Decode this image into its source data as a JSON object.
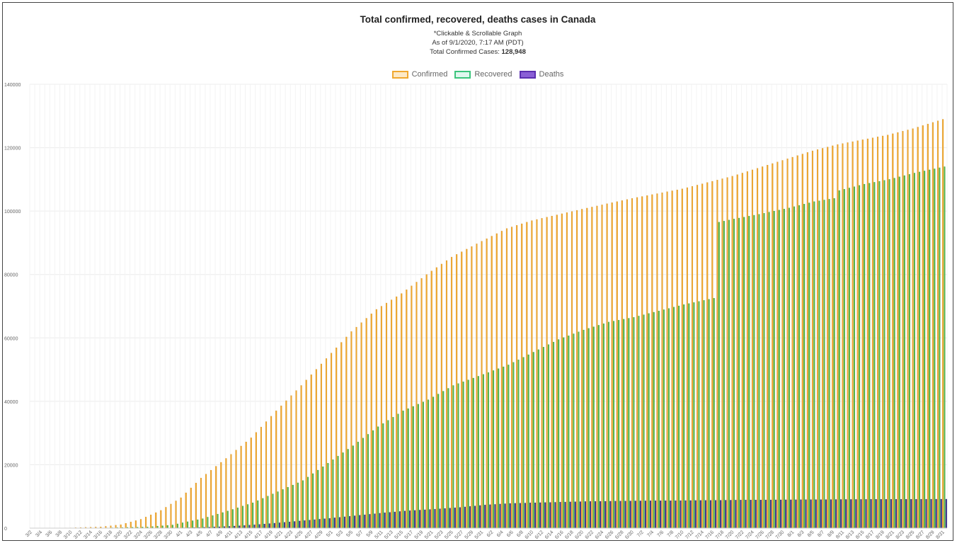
{
  "header": {
    "title": "Total confirmed, recovered, deaths cases in Canada",
    "note": "*Clickable & Scrollable Graph",
    "as_of": "As of 9/1/2020, 7:17 AM (PDT)",
    "total_label": "Total Confirmed Cases:",
    "total_value": "128,948"
  },
  "legend": [
    {
      "name": "Confirmed",
      "fill": "#fde9c6",
      "stroke": "#f0a830"
    },
    {
      "name": "Recovered",
      "fill": "#dff7ee",
      "stroke": "#3cc47c"
    },
    {
      "name": "Deaths",
      "fill": "#8a5fd6",
      "stroke": "#5b2fb0"
    }
  ],
  "colors": {
    "confirmed": "#f0a830",
    "recovered": "#55b84a",
    "deaths": "#3d3590",
    "grid": "#ececec"
  },
  "chart_data": {
    "type": "bar",
    "title": "Total confirmed, recovered, deaths cases in Canada",
    "xlabel": "",
    "ylabel": "",
    "ylim": [
      0,
      140000
    ],
    "yticks": [
      0,
      20000,
      40000,
      60000,
      80000,
      100000,
      120000,
      140000
    ],
    "x_start": "3/2",
    "x_end": "8/31",
    "x_tick_labels": [
      "3/2",
      "3/4",
      "3/6",
      "3/8",
      "3/10",
      "3/12",
      "3/14",
      "3/16",
      "3/18",
      "3/20",
      "3/22",
      "3/24",
      "3/26",
      "3/28",
      "3/30",
      "4/1",
      "4/3",
      "4/5",
      "4/7",
      "4/9",
      "4/11",
      "4/13",
      "4/15",
      "4/17",
      "4/19",
      "4/21",
      "4/23",
      "4/25",
      "4/27",
      "4/29",
      "5/1",
      "5/3",
      "5/5",
      "5/7",
      "5/9",
      "5/11",
      "5/13",
      "5/15",
      "5/17",
      "5/19",
      "5/21",
      "5/23",
      "5/25",
      "5/27",
      "5/29",
      "5/31",
      "6/2",
      "6/4",
      "6/6",
      "6/8",
      "6/10",
      "6/12",
      "6/14",
      "6/16",
      "6/18",
      "6/20",
      "6/22",
      "6/24",
      "6/26",
      "6/28",
      "6/30",
      "7/2",
      "7/4",
      "7/6",
      "7/8",
      "7/10",
      "7/12",
      "7/14",
      "7/16",
      "7/18",
      "7/20",
      "7/22",
      "7/24",
      "7/26",
      "7/28",
      "7/30",
      "8/1",
      "8/3",
      "8/5",
      "8/7",
      "8/9",
      "8/11",
      "8/13",
      "8/15",
      "8/17",
      "8/19",
      "8/21",
      "8/23",
      "8/25",
      "8/27",
      "8/29",
      "8/31"
    ],
    "series": [
      {
        "name": "Confirmed",
        "keypoints": [
          [
            "3/2",
            27
          ],
          [
            "3/10",
            93
          ],
          [
            "3/16",
            400
          ],
          [
            "3/20",
            1100
          ],
          [
            "3/24",
            2800
          ],
          [
            "3/28",
            5600
          ],
          [
            "4/1",
            9600
          ],
          [
            "4/5",
            15800
          ],
          [
            "4/10",
            22000
          ],
          [
            "4/15",
            28500
          ],
          [
            "4/20",
            37000
          ],
          [
            "4/25",
            45000
          ],
          [
            "4/30",
            53500
          ],
          [
            "5/5",
            62000
          ],
          [
            "5/10",
            69000
          ],
          [
            "5/15",
            74000
          ],
          [
            "5/20",
            80000
          ],
          [
            "5/25",
            85500
          ],
          [
            "5/31",
            90500
          ],
          [
            "6/5",
            94500
          ],
          [
            "6/10",
            97000
          ],
          [
            "6/15",
            98800
          ],
          [
            "6/20",
            100600
          ],
          [
            "6/25",
            102300
          ],
          [
            "6/30",
            104000
          ],
          [
            "7/5",
            105500
          ],
          [
            "7/10",
            107000
          ],
          [
            "7/15",
            109000
          ],
          [
            "7/20",
            111000
          ],
          [
            "7/25",
            113500
          ],
          [
            "7/31",
            116500
          ],
          [
            "8/5",
            119000
          ],
          [
            "8/10",
            121000
          ],
          [
            "8/15",
            122500
          ],
          [
            "8/20",
            124000
          ],
          [
            "8/25",
            126000
          ],
          [
            "8/31",
            128948
          ]
        ]
      },
      {
        "name": "Recovered",
        "keypoints": [
          [
            "3/2",
            0
          ],
          [
            "3/15",
            8
          ],
          [
            "3/25",
            400
          ],
          [
            "3/30",
            1000
          ],
          [
            "4/1",
            1700
          ],
          [
            "4/5",
            3000
          ],
          [
            "4/10",
            5400
          ],
          [
            "4/15",
            8000
          ],
          [
            "4/20",
            11500
          ],
          [
            "4/25",
            15000
          ],
          [
            "4/30",
            20500
          ],
          [
            "5/5",
            26000
          ],
          [
            "5/10",
            32000
          ],
          [
            "5/15",
            37000
          ],
          [
            "5/20",
            40500
          ],
          [
            "5/25",
            45000
          ],
          [
            "5/31",
            48500
          ],
          [
            "6/5",
            51500
          ],
          [
            "6/10",
            55500
          ],
          [
            "6/15",
            59500
          ],
          [
            "6/20",
            62500
          ],
          [
            "6/25",
            65000
          ],
          [
            "6/30",
            66500
          ],
          [
            "7/5",
            68500
          ],
          [
            "7/10",
            70500
          ],
          [
            "7/16",
            72500
          ],
          [
            "7/17",
            96500
          ],
          [
            "7/20",
            97500
          ],
          [
            "7/25",
            99000
          ],
          [
            "7/31",
            101000
          ],
          [
            "8/5",
            103000
          ],
          [
            "8/9",
            104000
          ],
          [
            "8/10",
            106500
          ],
          [
            "8/15",
            108500
          ],
          [
            "8/20",
            110000
          ],
          [
            "8/25",
            112000
          ],
          [
            "8/31",
            114000
          ]
        ]
      },
      {
        "name": "Deaths",
        "keypoints": [
          [
            "3/2",
            0
          ],
          [
            "3/8",
            1
          ],
          [
            "3/20",
            12
          ],
          [
            "3/25",
            40
          ],
          [
            "4/1",
            110
          ],
          [
            "4/5",
            250
          ],
          [
            "4/10",
            570
          ],
          [
            "4/15",
            1050
          ],
          [
            "4/20",
            1700
          ],
          [
            "4/25",
            2400
          ],
          [
            "4/30",
            3100
          ],
          [
            "5/5",
            3900
          ],
          [
            "5/10",
            4700
          ],
          [
            "5/15",
            5400
          ],
          [
            "5/20",
            5900
          ],
          [
            "5/25",
            6400
          ],
          [
            "5/31",
            7300
          ],
          [
            "6/5",
            7800
          ],
          [
            "6/10",
            8000
          ],
          [
            "6/15",
            8200
          ],
          [
            "6/20",
            8400
          ],
          [
            "6/30",
            8600
          ],
          [
            "7/10",
            8700
          ],
          [
            "7/20",
            8850
          ],
          [
            "7/31",
            8950
          ],
          [
            "8/10",
            9050
          ],
          [
            "8/20",
            9100
          ],
          [
            "8/31",
            9150
          ]
        ]
      }
    ],
    "legend_position": "top",
    "grid": true,
    "stacked": false
  }
}
